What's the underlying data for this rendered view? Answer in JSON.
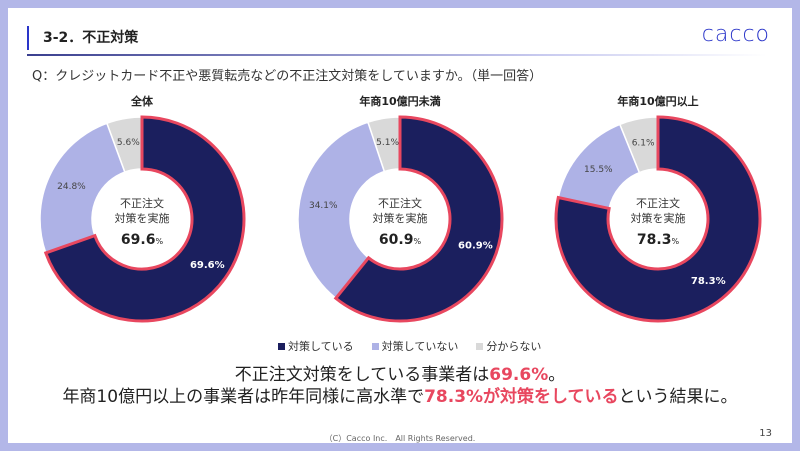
{
  "header": {
    "title": "3-2．不正対策",
    "logo": "cacco"
  },
  "question": "Q：クレジットカード不正や悪質転売などの不正注文対策をしていますか。（単一回答）",
  "center_label_line1": "不正注文",
  "center_label_line2": "対策を実施",
  "percent_unit": "%",
  "colors": {
    "implemented": "#1b1f5e",
    "not_implemented": "#aeb2e6",
    "unknown": "#d9d9d9",
    "highlight": "#e8475f"
  },
  "chart_data": [
    {
      "type": "pie",
      "title": "全体",
      "categories": [
        "対策している",
        "対策していない",
        "分からない"
      ],
      "values": [
        69.6,
        24.8,
        5.6
      ],
      "labels": [
        "69.6%",
        "24.8%",
        "5.6%"
      ],
      "center_value": "69.6"
    },
    {
      "type": "pie",
      "title": "年商10億円未満",
      "categories": [
        "対策している",
        "対策していない",
        "分からない"
      ],
      "values": [
        60.9,
        34.1,
        5.1
      ],
      "labels": [
        "60.9%",
        "34.1%",
        "5.1%"
      ],
      "center_value": "60.9"
    },
    {
      "type": "pie",
      "title": "年商10億円以上",
      "categories": [
        "対策している",
        "対策していない",
        "分からない"
      ],
      "values": [
        78.3,
        15.5,
        6.1
      ],
      "labels": [
        "78.3%",
        "15.5%",
        "6.1%"
      ],
      "center_value": "78.3"
    }
  ],
  "legend": [
    "対策している",
    "対策していない",
    "分からない"
  ],
  "summary": {
    "line1_a": "不正注文対策をしている事業者は",
    "line1_hl": "69.6%",
    "line1_b": "。",
    "line2_a": "年商10億円以上の事業者は昨年同様に高水準で",
    "line2_hl": "78.3%が対策をしている",
    "line2_b": "という結果に。"
  },
  "footer": "（C）Cacco Inc.　All Rights Reserved.",
  "page_number": "13"
}
